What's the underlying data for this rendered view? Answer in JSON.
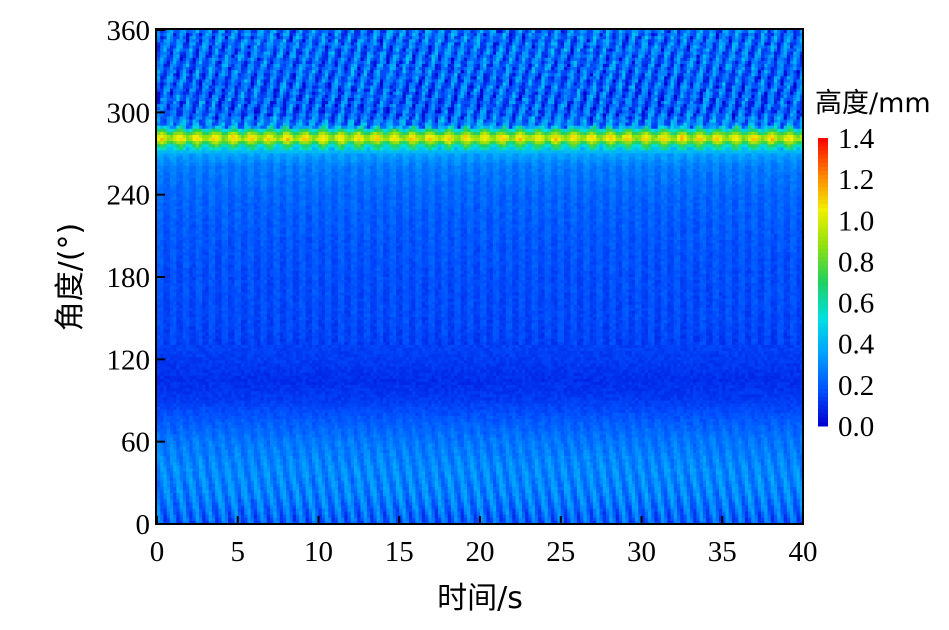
{
  "chart_data": {
    "type": "heatmap",
    "xlabel": "时间/s",
    "ylabel": "角度/(°)",
    "xlim": [
      0,
      40
    ],
    "ylim": [
      0,
      360
    ],
    "xticks": [
      "0",
      "5",
      "10",
      "15",
      "20",
      "25",
      "30",
      "35",
      "40"
    ],
    "yticks": [
      "0",
      "60",
      "120",
      "180",
      "240",
      "300",
      "360"
    ],
    "colorbar": {
      "title": "高度/mm",
      "range": [
        0.0,
        1.4
      ],
      "ticks": [
        "0.0",
        "0.2",
        "0.4",
        "0.6",
        "0.8",
        "1.0",
        "1.2",
        "1.4"
      ],
      "colormap": [
        "#0000d0",
        "#0050ff",
        "#00a0ff",
        "#00e0e0",
        "#20d060",
        "#90e010",
        "#f0f000",
        "#ff8000",
        "#ff0000"
      ]
    },
    "angle_profile": [
      [
        0,
        0.2
      ],
      [
        20,
        0.28
      ],
      [
        40,
        0.3
      ],
      [
        60,
        0.26
      ],
      [
        75,
        0.2
      ],
      [
        90,
        0.13
      ],
      [
        105,
        0.1
      ],
      [
        120,
        0.13
      ],
      [
        150,
        0.16
      ],
      [
        180,
        0.17
      ],
      [
        210,
        0.19
      ],
      [
        240,
        0.22
      ],
      [
        260,
        0.27
      ],
      [
        270,
        0.36
      ],
      [
        276,
        0.65
      ],
      [
        281,
        1.05
      ],
      [
        286,
        0.7
      ],
      [
        290,
        0.3
      ],
      [
        300,
        0.2
      ],
      [
        330,
        0.22
      ],
      [
        360,
        0.24
      ]
    ],
    "dominant_band": {
      "angle_deg": 281,
      "height_mm": 1.05
    }
  }
}
